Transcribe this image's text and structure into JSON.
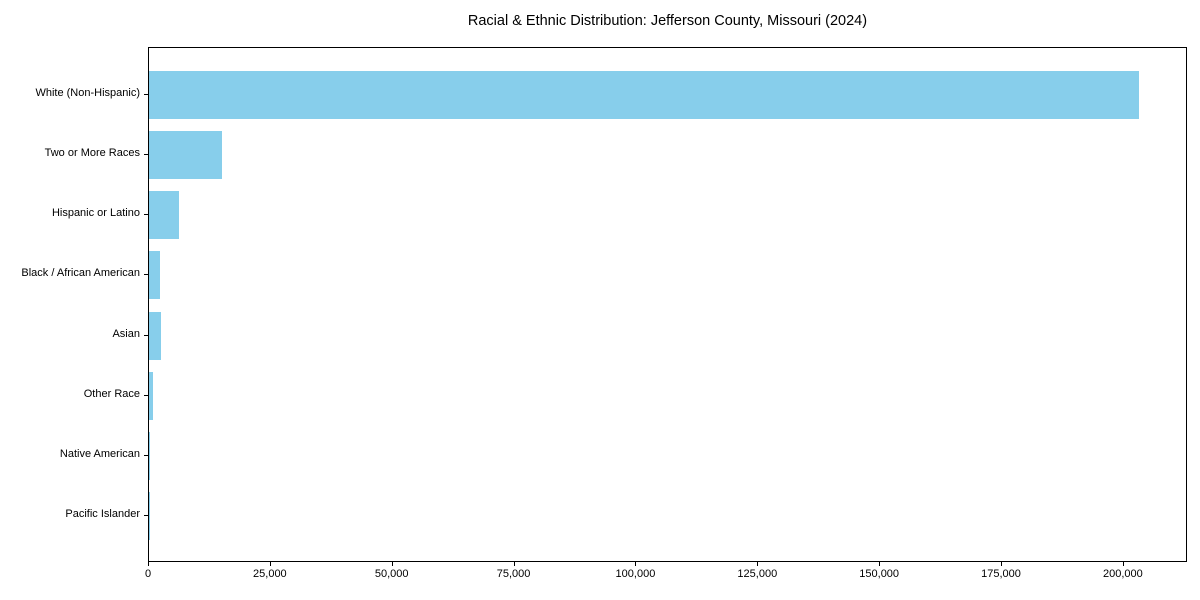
{
  "chart_data": {
    "type": "bar",
    "orientation": "horizontal",
    "title": "Racial & Ethnic Distribution: Jefferson County, Missouri (2024)",
    "categories": [
      "White (Non-Hispanic)",
      "Two or More Races",
      "Hispanic or Latino",
      "Black / African American",
      "Asian",
      "Other Race",
      "Native American",
      "Pacific Islander"
    ],
    "values": [
      203000,
      15000,
      6200,
      2200,
      2400,
      750,
      200,
      100
    ],
    "bar_color": "#87CEEB",
    "xlabel": "",
    "ylabel": "",
    "xlim": [
      0,
      213150
    ],
    "xticks": [
      0,
      25000,
      50000,
      75000,
      100000,
      125000,
      150000,
      175000,
      200000
    ],
    "xtick_labels": [
      "0",
      "25,000",
      "50,000",
      "75,000",
      "100,000",
      "125,000",
      "150,000",
      "175,000",
      "200,000"
    ],
    "grid": false,
    "legend": null,
    "background_color": "#ffffff",
    "axis_color": "#000000"
  }
}
